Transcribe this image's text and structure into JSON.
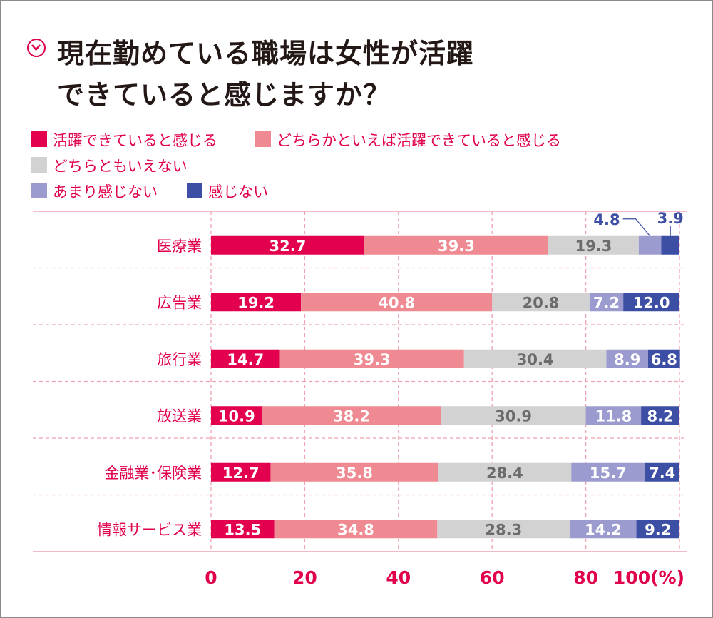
{
  "title": {
    "line1": "現在勤めている職場は女性が活躍",
    "line2": "できていると感じますか？"
  },
  "colors": {
    "title_text": "#231815",
    "accent": "#e0004d",
    "grid": "#f0a3b2",
    "value_dark_text": "#6b6b6b",
    "value_light_text": "#ffffff"
  },
  "icons": {
    "title_marker": "circled-down-chevron-icon"
  },
  "chart_data": {
    "type": "bar",
    "orientation": "horizontal",
    "stacked": true,
    "categories": [
      "医療業",
      "広告業",
      "旅行業",
      "放送業",
      "金融業･保険業",
      "情報サービス業"
    ],
    "series": [
      {
        "name": "活躍できていると感じる",
        "color": "#e2004f",
        "values": [
          32.7,
          19.2,
          14.7,
          10.9,
          12.7,
          13.5
        ]
      },
      {
        "name": "どちらかといえば活躍できていると感じる",
        "color": "#ef8a92",
        "values": [
          39.3,
          40.8,
          39.3,
          38.2,
          35.8,
          34.8
        ]
      },
      {
        "name": "どちらともいえない",
        "color": "#d2d2d2",
        "values": [
          19.3,
          20.8,
          30.4,
          30.9,
          28.4,
          28.3
        ]
      },
      {
        "name": "あまり感じない",
        "color": "#9b9bd0",
        "values": [
          4.8,
          7.2,
          8.9,
          11.8,
          15.7,
          14.2
        ]
      },
      {
        "name": "感じない",
        "color": "#3d4ea5",
        "values": [
          3.9,
          12.0,
          6.8,
          8.2,
          7.4,
          9.2
        ]
      }
    ],
    "x_ticks": [
      "0",
      "20",
      "40",
      "60",
      "80",
      "100(%)"
    ],
    "xlim": [
      0,
      100
    ],
    "grid": true,
    "legend": "top-left"
  }
}
